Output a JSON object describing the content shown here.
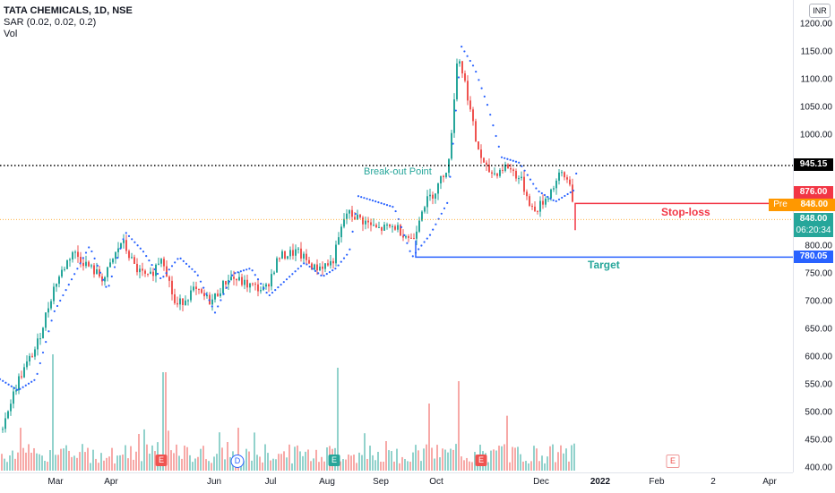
{
  "legend": {
    "symbol": "TATA CHEMICALS, 1D, NSE",
    "indicator": "SAR (0.02, 0.02, 0.2)",
    "volume": "Vol"
  },
  "currency_button": "INR",
  "price_axis": {
    "ticks": [
      "1200.00",
      "1150.00",
      "1100.00",
      "1050.00",
      "1000.00",
      "950.00",
      "900.00",
      "850.00",
      "800.00",
      "750.00",
      "700.00",
      "650.00",
      "600.00",
      "550.00",
      "500.00",
      "450.00",
      "400.00"
    ],
    "tags": {
      "breakout_value": "945.15",
      "stoploss_value": "876.00",
      "pre_label": "Pre",
      "pre_value": "848.00",
      "last_value": "848.00",
      "countdown": "06:20:34",
      "target_value": "780.05"
    }
  },
  "time_axis": {
    "labels": [
      "Mar",
      "Apr",
      "Jun",
      "Jul",
      "Aug",
      "Sep",
      "Oct",
      "Dec",
      "2022",
      "Feb",
      "2",
      "Apr"
    ]
  },
  "annotations": {
    "breakout": "Break-out Point",
    "stoploss": "Stop-loss",
    "target": "Target"
  },
  "events": [
    "E",
    "D",
    "E",
    "E",
    "E"
  ],
  "colors": {
    "up": "#26a69a",
    "down": "#ef5350",
    "sar": "#2962ff",
    "stoploss_line": "#f23645",
    "target_line": "#2962ff",
    "breakout_tag": "#000000",
    "stoploss_tag": "#f23645",
    "pre_tag": "#ff9800",
    "last_tag": "#26a69a"
  },
  "chart_data": {
    "type": "candlestick",
    "y_range": [
      400,
      1200
    ],
    "levels": {
      "breakout": 945.15,
      "stoploss": 876.0,
      "target": 780.05,
      "last": 848.0
    },
    "price_path": [
      [
        0,
        470
      ],
      [
        20,
        560
      ],
      [
        40,
        620
      ],
      [
        60,
        730
      ],
      [
        80,
        790
      ],
      [
        100,
        760
      ],
      [
        115,
        740
      ],
      [
        135,
        810
      ],
      [
        150,
        760
      ],
      [
        165,
        740
      ],
      [
        180,
        785
      ],
      [
        195,
        690
      ],
      [
        215,
        720
      ],
      [
        235,
        700
      ],
      [
        255,
        745
      ],
      [
        275,
        730
      ],
      [
        295,
        720
      ],
      [
        310,
        780
      ],
      [
        330,
        790
      ],
      [
        350,
        760
      ],
      [
        370,
        770
      ],
      [
        385,
        860
      ],
      [
        400,
        850
      ],
      [
        420,
        830
      ],
      [
        440,
        835
      ],
      [
        460,
        810
      ],
      [
        470,
        870
      ],
      [
        485,
        900
      ],
      [
        500,
        950
      ],
      [
        510,
        1150
      ],
      [
        520,
        1080
      ],
      [
        530,
        990
      ],
      [
        540,
        940
      ],
      [
        550,
        930
      ],
      [
        565,
        945
      ],
      [
        580,
        920
      ],
      [
        595,
        860
      ],
      [
        610,
        890
      ],
      [
        625,
        930
      ],
      [
        635,
        915
      ],
      [
        642,
        848
      ]
    ],
    "sar_path": [
      [
        0,
        560
      ],
      [
        20,
        540
      ],
      [
        40,
        560
      ],
      [
        60,
        680
      ],
      [
        80,
        740
      ],
      [
        100,
        800
      ],
      [
        120,
        720
      ],
      [
        140,
        825
      ],
      [
        160,
        790
      ],
      [
        180,
        740
      ],
      [
        200,
        780
      ],
      [
        220,
        750
      ],
      [
        240,
        680
      ],
      [
        260,
        750
      ],
      [
        280,
        760
      ],
      [
        300,
        710
      ],
      [
        320,
        740
      ],
      [
        340,
        770
      ],
      [
        360,
        745
      ],
      [
        375,
        760
      ],
      [
        390,
        790
      ],
      [
        400,
        890
      ],
      [
        420,
        880
      ],
      [
        440,
        870
      ],
      [
        460,
        780
      ],
      [
        480,
        820
      ],
      [
        500,
        880
      ],
      [
        515,
        1160
      ],
      [
        530,
        1120
      ],
      [
        545,
        1050
      ],
      [
        560,
        960
      ],
      [
        580,
        950
      ],
      [
        600,
        900
      ],
      [
        620,
        880
      ],
      [
        640,
        900
      ],
      [
        645,
        948
      ]
    ],
    "volume_profile": "varies, spikes near Apr, Aug, Sep, Oct"
  }
}
